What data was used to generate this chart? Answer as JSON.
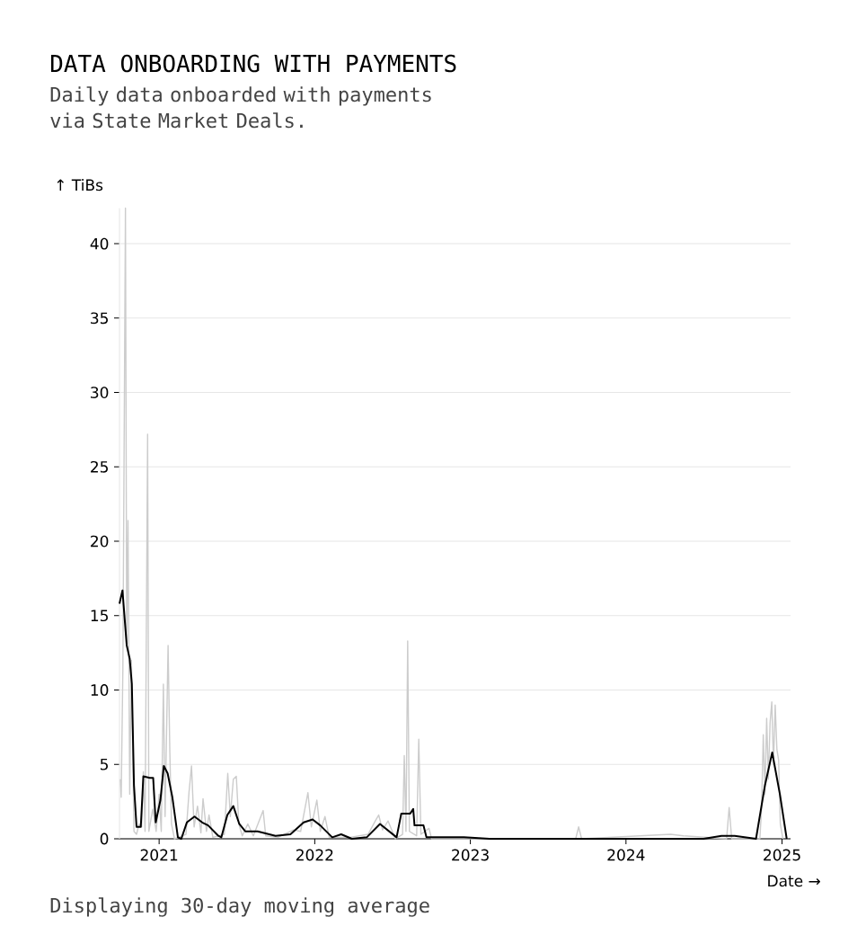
{
  "chart_data": {
    "type": "line",
    "title": "DATA ONBOARDING WITH PAYMENTS",
    "subtitle": "Daily data onboarded with payments via State Market Deals.",
    "xlabel": "Date →",
    "ylabel": "↑ TiBs",
    "annotations": [
      "Displaying 30-day moving average"
    ],
    "xlim": [
      "2020-09-30",
      "2025-01-21"
    ],
    "ylim": [
      0,
      42.4
    ],
    "xticks": [
      {
        "value": "2021-01-01",
        "label": "2021"
      },
      {
        "value": "2022-01-01",
        "label": "2022"
      },
      {
        "value": "2023-01-01",
        "label": "2023"
      },
      {
        "value": "2024-01-01",
        "label": "2024"
      },
      {
        "value": "2025-01-01",
        "label": "2025"
      }
    ],
    "yticks": [
      0,
      5,
      10,
      15,
      20,
      25,
      30,
      35,
      40
    ],
    "grid": "y",
    "series": [
      {
        "color": "#cccccc",
        "x": [
          "2020-10-02",
          "2020-10-04",
          "2020-10-08",
          "2020-10-14",
          "2020-10-17",
          "2020-10-20",
          "2020-10-24",
          "2020-10-28",
          "2020-11-03",
          "2020-11-09",
          "2020-11-15",
          "2020-11-21",
          "2020-11-25",
          "2020-11-29",
          "2020-12-05",
          "2020-12-08",
          "2020-12-17",
          "2020-12-25",
          "2021-01-01",
          "2021-01-06",
          "2021-01-11",
          "2021-01-15",
          "2021-01-22",
          "2021-01-26",
          "2021-01-30",
          "2021-02-06",
          "2021-03-05",
          "2021-03-12",
          "2021-03-18",
          "2021-03-24",
          "2021-04-01",
          "2021-04-09",
          "2021-04-14",
          "2021-04-22",
          "2021-04-28",
          "2021-05-07",
          "2021-06-03",
          "2021-06-11",
          "2021-06-17",
          "2021-06-24",
          "2021-07-01",
          "2021-07-07",
          "2021-07-15",
          "2021-07-28",
          "2021-08-10",
          "2021-09-02",
          "2021-09-08",
          "2021-10-07",
          "2021-11-12",
          "2021-11-29",
          "2021-12-16",
          "2021-12-24",
          "2022-01-06",
          "2022-01-14",
          "2022-01-25",
          "2022-02-04",
          "2022-03-25",
          "2022-05-06",
          "2022-05-23",
          "2022-05-31",
          "2022-06-09",
          "2022-06-22",
          "2022-07-09",
          "2022-07-26",
          "2022-07-30",
          "2022-08-03",
          "2022-08-07",
          "2022-08-11",
          "2022-08-28",
          "2022-09-02",
          "2022-09-07",
          "2022-09-26",
          "2022-10-02",
          "2023-09-05",
          "2023-09-12",
          "2023-09-19",
          "2024-04-15",
          "2024-05-15",
          "2024-08-24",
          "2024-08-30",
          "2024-09-05",
          "2024-11-10",
          "2024-11-14",
          "2024-11-18",
          "2024-11-22",
          "2024-11-26",
          "2024-11-30",
          "2024-12-04",
          "2024-12-08",
          "2024-12-12",
          "2024-12-16",
          "2024-12-20",
          "2024-12-24",
          "2024-12-28",
          "2025-01-03"
        ],
        "values": [
          4.0,
          2.8,
          11.5,
          42.4,
          13,
          21.4,
          3,
          12,
          0.5,
          0.3,
          1.0,
          0.8,
          4.5,
          0.5,
          27.2,
          0.5,
          2,
          0.5,
          3,
          0.5,
          10.4,
          1.5,
          13.0,
          6,
          1,
          0,
          0.3,
          3.1,
          4.9,
          0.8,
          2.2,
          0.4,
          2.7,
          0.5,
          1.6,
          0.1,
          0.3,
          4.4,
          1.5,
          4.0,
          4.2,
          1.0,
          0.2,
          1.0,
          0.2,
          1.9,
          0.2,
          0.1,
          0.6,
          0.5,
          3.1,
          0.8,
          2.6,
          0.5,
          1.5,
          0.1,
          0.1,
          0.3,
          1.2,
          1.6,
          0.6,
          1.2,
          0,
          0.3,
          5.6,
          0.5,
          13.3,
          0.5,
          0.2,
          6.7,
          0.3,
          0.7,
          0,
          0,
          0.8,
          0,
          0.3,
          0.2,
          0,
          2.1,
          0,
          0,
          2,
          7.0,
          3,
          8.1,
          4,
          7.8,
          9.2,
          5,
          9.0,
          6,
          5.3,
          1,
          0
        ]
      },
      {
        "color": "#000000",
        "x": [
          "2020-09-30",
          "2020-10-07",
          "2020-10-17",
          "2020-10-24",
          "2020-10-29",
          "2020-11-03",
          "2020-11-09",
          "2020-11-19",
          "2020-11-25",
          "2020-12-10",
          "2020-12-18",
          "2020-12-24",
          "2021-01-04",
          "2021-01-12",
          "2021-01-21",
          "2021-02-01",
          "2021-02-14",
          "2021-02-22",
          "2021-03-07",
          "2021-03-25",
          "2021-04-12",
          "2021-04-26",
          "2021-05-20",
          "2021-05-27",
          "2021-06-10",
          "2021-06-24",
          "2021-07-08",
          "2021-07-22",
          "2021-08-20",
          "2021-10-01",
          "2021-11-05",
          "2021-12-06",
          "2021-12-27",
          "2022-01-14",
          "2022-02-11",
          "2022-03-04",
          "2022-03-29",
          "2022-05-03",
          "2022-06-03",
          "2022-07-12",
          "2022-07-23",
          "2022-08-13",
          "2022-08-20",
          "2022-08-23",
          "2022-09-13",
          "2022-09-20",
          "2022-12-17",
          "2023-02-15",
          "2023-06-01",
          "2024-07-01",
          "2024-08-12",
          "2024-09-12",
          "2024-11-01",
          "2024-11-22",
          "2024-12-09",
          "2024-12-27",
          "2025-01-12"
        ],
        "values": [
          15.8,
          16.7,
          13.0,
          12.1,
          10.4,
          3.6,
          0.8,
          0.8,
          4.2,
          4.1,
          4.1,
          1.1,
          2.6,
          4.9,
          4.4,
          2.8,
          0.1,
          0,
          1.1,
          1.5,
          1.1,
          0.9,
          0.2,
          0.1,
          1.6,
          2.2,
          1.0,
          0.5,
          0.5,
          0.2,
          0.3,
          1.1,
          1.3,
          0.9,
          0.1,
          0.3,
          0,
          0.1,
          1.0,
          0.1,
          1.7,
          1.7,
          2.0,
          0.9,
          0.9,
          0.1,
          0.1,
          0,
          0,
          0,
          0.2,
          0.2,
          0,
          3.6,
          5.8,
          3.0,
          0
        ]
      }
    ]
  }
}
